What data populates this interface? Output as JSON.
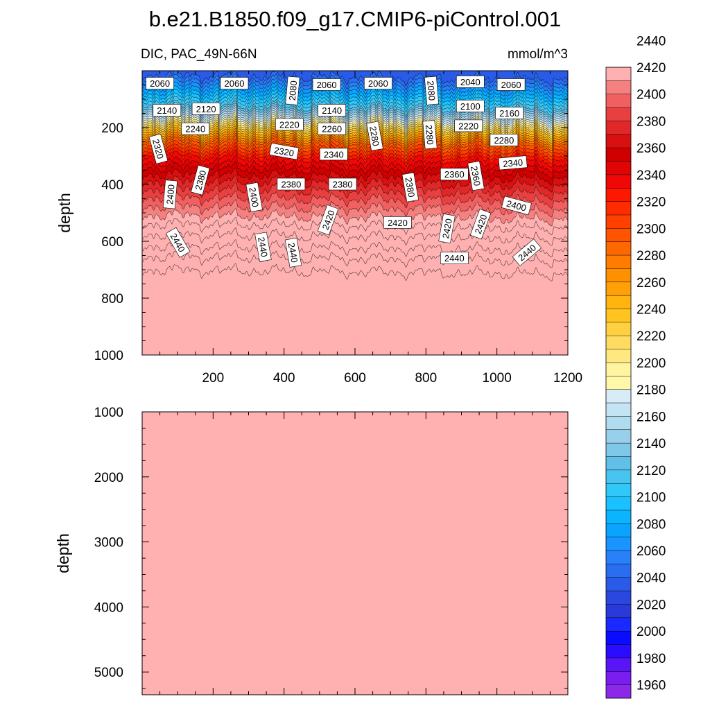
{
  "chart_data": {
    "type": "heatmap",
    "title": "b.e21.B1850.f09_g17.CMIP6-piControl.001",
    "variable_label": "DIC, PAC_49N-66N",
    "units": "mmol/m^3",
    "x_ticks": [
      "200",
      "400",
      "600",
      "800",
      "1000",
      "1200"
    ],
    "xlim": [
      0,
      1200
    ],
    "upper_panel": {
      "ylabel": "depth",
      "ylim": [
        0,
        1000
      ],
      "y_ticks": [
        "200",
        "400",
        "600",
        "800",
        "1000"
      ],
      "contour_labels": [
        {
          "text": "2060",
          "x": 50,
          "depth": 45,
          "angle": 0
        },
        {
          "text": "2060",
          "x": 260,
          "depth": 45,
          "angle": 0
        },
        {
          "text": "2080",
          "x": 425,
          "depth": 70,
          "angle": -85
        },
        {
          "text": "2060",
          "x": 520,
          "depth": 50,
          "angle": 0
        },
        {
          "text": "2060",
          "x": 665,
          "depth": 45,
          "angle": 0
        },
        {
          "text": "2080",
          "x": 815,
          "depth": 70,
          "angle": 85
        },
        {
          "text": "2040",
          "x": 925,
          "depth": 40,
          "angle": 0
        },
        {
          "text": "2060",
          "x": 1040,
          "depth": 50,
          "angle": 0
        },
        {
          "text": "2140",
          "x": 70,
          "depth": 140,
          "angle": 0
        },
        {
          "text": "2120",
          "x": 180,
          "depth": 135,
          "angle": 0
        },
        {
          "text": "2140",
          "x": 535,
          "depth": 140,
          "angle": 0
        },
        {
          "text": "2100",
          "x": 925,
          "depth": 125,
          "angle": 0
        },
        {
          "text": "2160",
          "x": 1035,
          "depth": 150,
          "angle": 0
        },
        {
          "text": "2220",
          "x": 415,
          "depth": 190,
          "angle": 0
        },
        {
          "text": "2260",
          "x": 535,
          "depth": 205,
          "angle": 0
        },
        {
          "text": "2280",
          "x": 655,
          "depth": 230,
          "angle": 80
        },
        {
          "text": "2280",
          "x": 810,
          "depth": 225,
          "angle": 85
        },
        {
          "text": "2220",
          "x": 920,
          "depth": 195,
          "angle": 0
        },
        {
          "text": "2240",
          "x": 150,
          "depth": 205,
          "angle": 0
        },
        {
          "text": "2280",
          "x": 1020,
          "depth": 245,
          "angle": 0
        },
        {
          "text": "2320",
          "x": 45,
          "depth": 275,
          "angle": 75
        },
        {
          "text": "2320",
          "x": 400,
          "depth": 285,
          "angle": 10
        },
        {
          "text": "2340",
          "x": 540,
          "depth": 295,
          "angle": 0
        },
        {
          "text": "2340",
          "x": 1045,
          "depth": 325,
          "angle": -5
        },
        {
          "text": "2360",
          "x": 880,
          "depth": 365,
          "angle": 0
        },
        {
          "text": "2360",
          "x": 940,
          "depth": 370,
          "angle": 80
        },
        {
          "text": "2380",
          "x": 165,
          "depth": 385,
          "angle": -75
        },
        {
          "text": "2380",
          "x": 420,
          "depth": 400,
          "angle": 0
        },
        {
          "text": "2380",
          "x": 565,
          "depth": 400,
          "angle": 0
        },
        {
          "text": "2380",
          "x": 755,
          "depth": 410,
          "angle": 80
        },
        {
          "text": "2400",
          "x": 80,
          "depth": 435,
          "angle": -85
        },
        {
          "text": "2400",
          "x": 315,
          "depth": 445,
          "angle": 80
        },
        {
          "text": "2400",
          "x": 1055,
          "depth": 475,
          "angle": 15
        },
        {
          "text": "2420",
          "x": 525,
          "depth": 525,
          "angle": -70
        },
        {
          "text": "2420",
          "x": 720,
          "depth": 535,
          "angle": 0
        },
        {
          "text": "2420",
          "x": 860,
          "depth": 555,
          "angle": -80
        },
        {
          "text": "2420",
          "x": 955,
          "depth": 540,
          "angle": -70
        },
        {
          "text": "2440",
          "x": 100,
          "depth": 605,
          "angle": 60
        },
        {
          "text": "2440",
          "x": 340,
          "depth": 620,
          "angle": 80
        },
        {
          "text": "2440",
          "x": 425,
          "depth": 640,
          "angle": 80
        },
        {
          "text": "2440",
          "x": 880,
          "depth": 660,
          "angle": 0
        },
        {
          "text": "2440",
          "x": 1085,
          "depth": 640,
          "angle": -40
        }
      ]
    },
    "lower_panel": {
      "ylabel": "depth",
      "ylim": [
        1000,
        5350
      ],
      "y_ticks": [
        "1000",
        "2000",
        "3000",
        "4000",
        "5000"
      ],
      "fill_value": "above 2450"
    },
    "colorbar": {
      "labels": [
        "2440",
        "2420",
        "2400",
        "2380",
        "2360",
        "2340",
        "2320",
        "2300",
        "2280",
        "2260",
        "2240",
        "2220",
        "2200",
        "2180",
        "2160",
        "2140",
        "2120",
        "2100",
        "2080",
        "2060",
        "2040",
        "2020",
        "2000",
        "1980",
        "1960"
      ],
      "levels_min": 1950,
      "levels_step": 10,
      "colors": [
        "#8c28e8",
        "#7a1ef0",
        "#5a14f8",
        "#2a0cff",
        "#0a0cff",
        "#1a2aff",
        "#2a3ad8",
        "#2a48e0",
        "#2a5ae8",
        "#2a6ef0",
        "#2a80f8",
        "#1a94ff",
        "#0aa4ff",
        "#0ab4ff",
        "#1ac0ff",
        "#30c8f8",
        "#48c4f0",
        "#60c0e8",
        "#80c8e8",
        "#98d0ec",
        "#b0dcf0",
        "#c4e4f4",
        "#d8ecf8",
        "#fff8a8",
        "#fff4a0",
        "#ffe880",
        "#ffdc60",
        "#ffd040",
        "#ffc420",
        "#ffb410",
        "#ffa008",
        "#ff9000",
        "#ff7c00",
        "#ff6800",
        "#ff5400",
        "#ff4000",
        "#ff2c00",
        "#ff1800",
        "#f00808",
        "#e00404",
        "#d00000",
        "#d81010",
        "#e02828",
        "#e84040",
        "#f06060",
        "#f48080",
        "#ffb0b0"
      ],
      "below_color": "#8c28e8",
      "above_color": "#ffb0b0"
    }
  }
}
